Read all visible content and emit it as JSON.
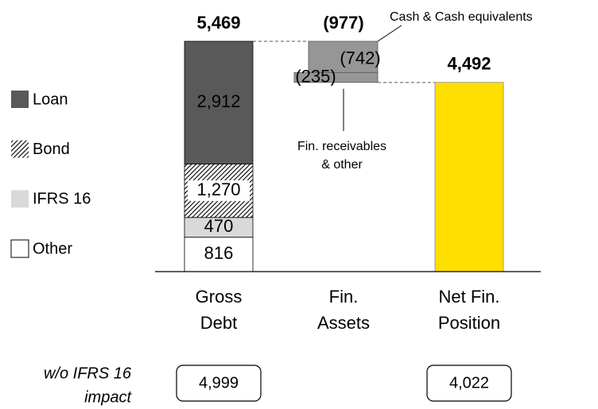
{
  "chart_data": {
    "type": "waterfall",
    "categories": [
      [
        "Gross",
        "Debt"
      ],
      [
        "Fin.",
        "Assets"
      ],
      [
        "Net Fin.",
        "Position"
      ]
    ],
    "gross_debt": {
      "series": [
        {
          "name": "Other",
          "color": "#ffffff",
          "values": [
            816
          ],
          "value_labels": [
            "816"
          ]
        },
        {
          "name": "IFRS 16",
          "color": "#d9d9d9",
          "values": [
            470
          ],
          "value_labels": [
            "470"
          ]
        },
        {
          "name": "Bond",
          "color": "#000000",
          "pattern": "hatch",
          "values": [
            1270
          ],
          "value_labels": [
            "1,270"
          ]
        },
        {
          "name": "Loan",
          "color": "#595959",
          "values": [
            2912
          ],
          "value_labels": [
            "2,912"
          ]
        }
      ],
      "total": 5469,
      "total_label": "5,469"
    },
    "fin_assets": {
      "series": [
        {
          "name": "Cash & Cash equivalents",
          "color": "#969696",
          "values": [
            -742
          ],
          "value_labels": [
            "(742)"
          ]
        },
        {
          "name": [
            "Fin. receivables",
            "& other"
          ],
          "color": "#969696",
          "values": [
            -235
          ],
          "value_labels": [
            "(235)"
          ]
        }
      ],
      "total": -977,
      "total_label": "(977)"
    },
    "net_position": {
      "value": 4492,
      "value_label": "4,492",
      "color": "#ffdf00"
    },
    "footnote": {
      "label": [
        "w/o IFRS 16",
        "impact"
      ],
      "values": [
        4999,
        null,
        4022
      ],
      "value_labels": [
        "4,999",
        null,
        "4,022"
      ]
    }
  }
}
